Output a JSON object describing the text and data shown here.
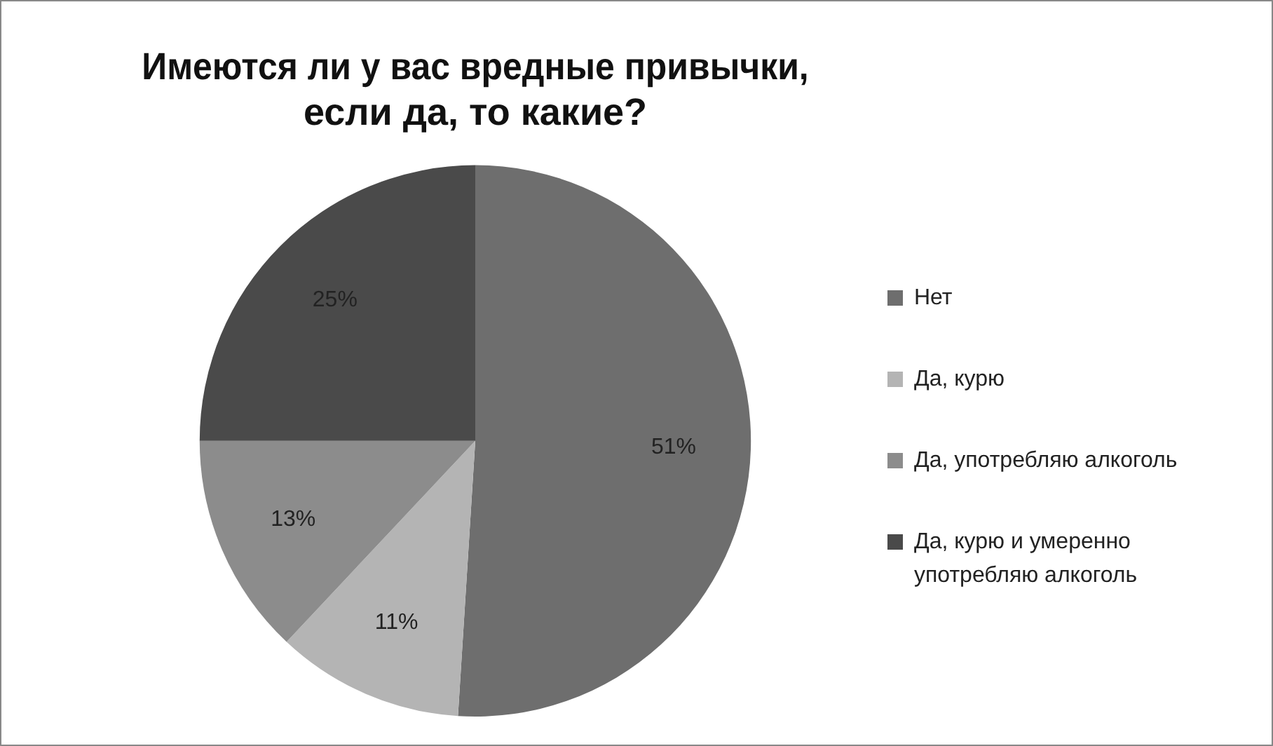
{
  "chart_data": {
    "type": "pie",
    "title": "Имеются ли у вас вредные привычки,\nесли да, то какие?",
    "categories": [
      "Нет",
      "Да, курю",
      "Да, употребляю алкоголь",
      "Да, курю и умеренно употребляю алкоголь"
    ],
    "values": [
      51,
      11,
      13,
      25
    ],
    "colors": [
      "#6e6e6e",
      "#b4b4b4",
      "#8c8c8c",
      "#4a4a4a"
    ],
    "value_labels": [
      "51%",
      "11%",
      "13%",
      "25%"
    ],
    "legend": "right"
  }
}
